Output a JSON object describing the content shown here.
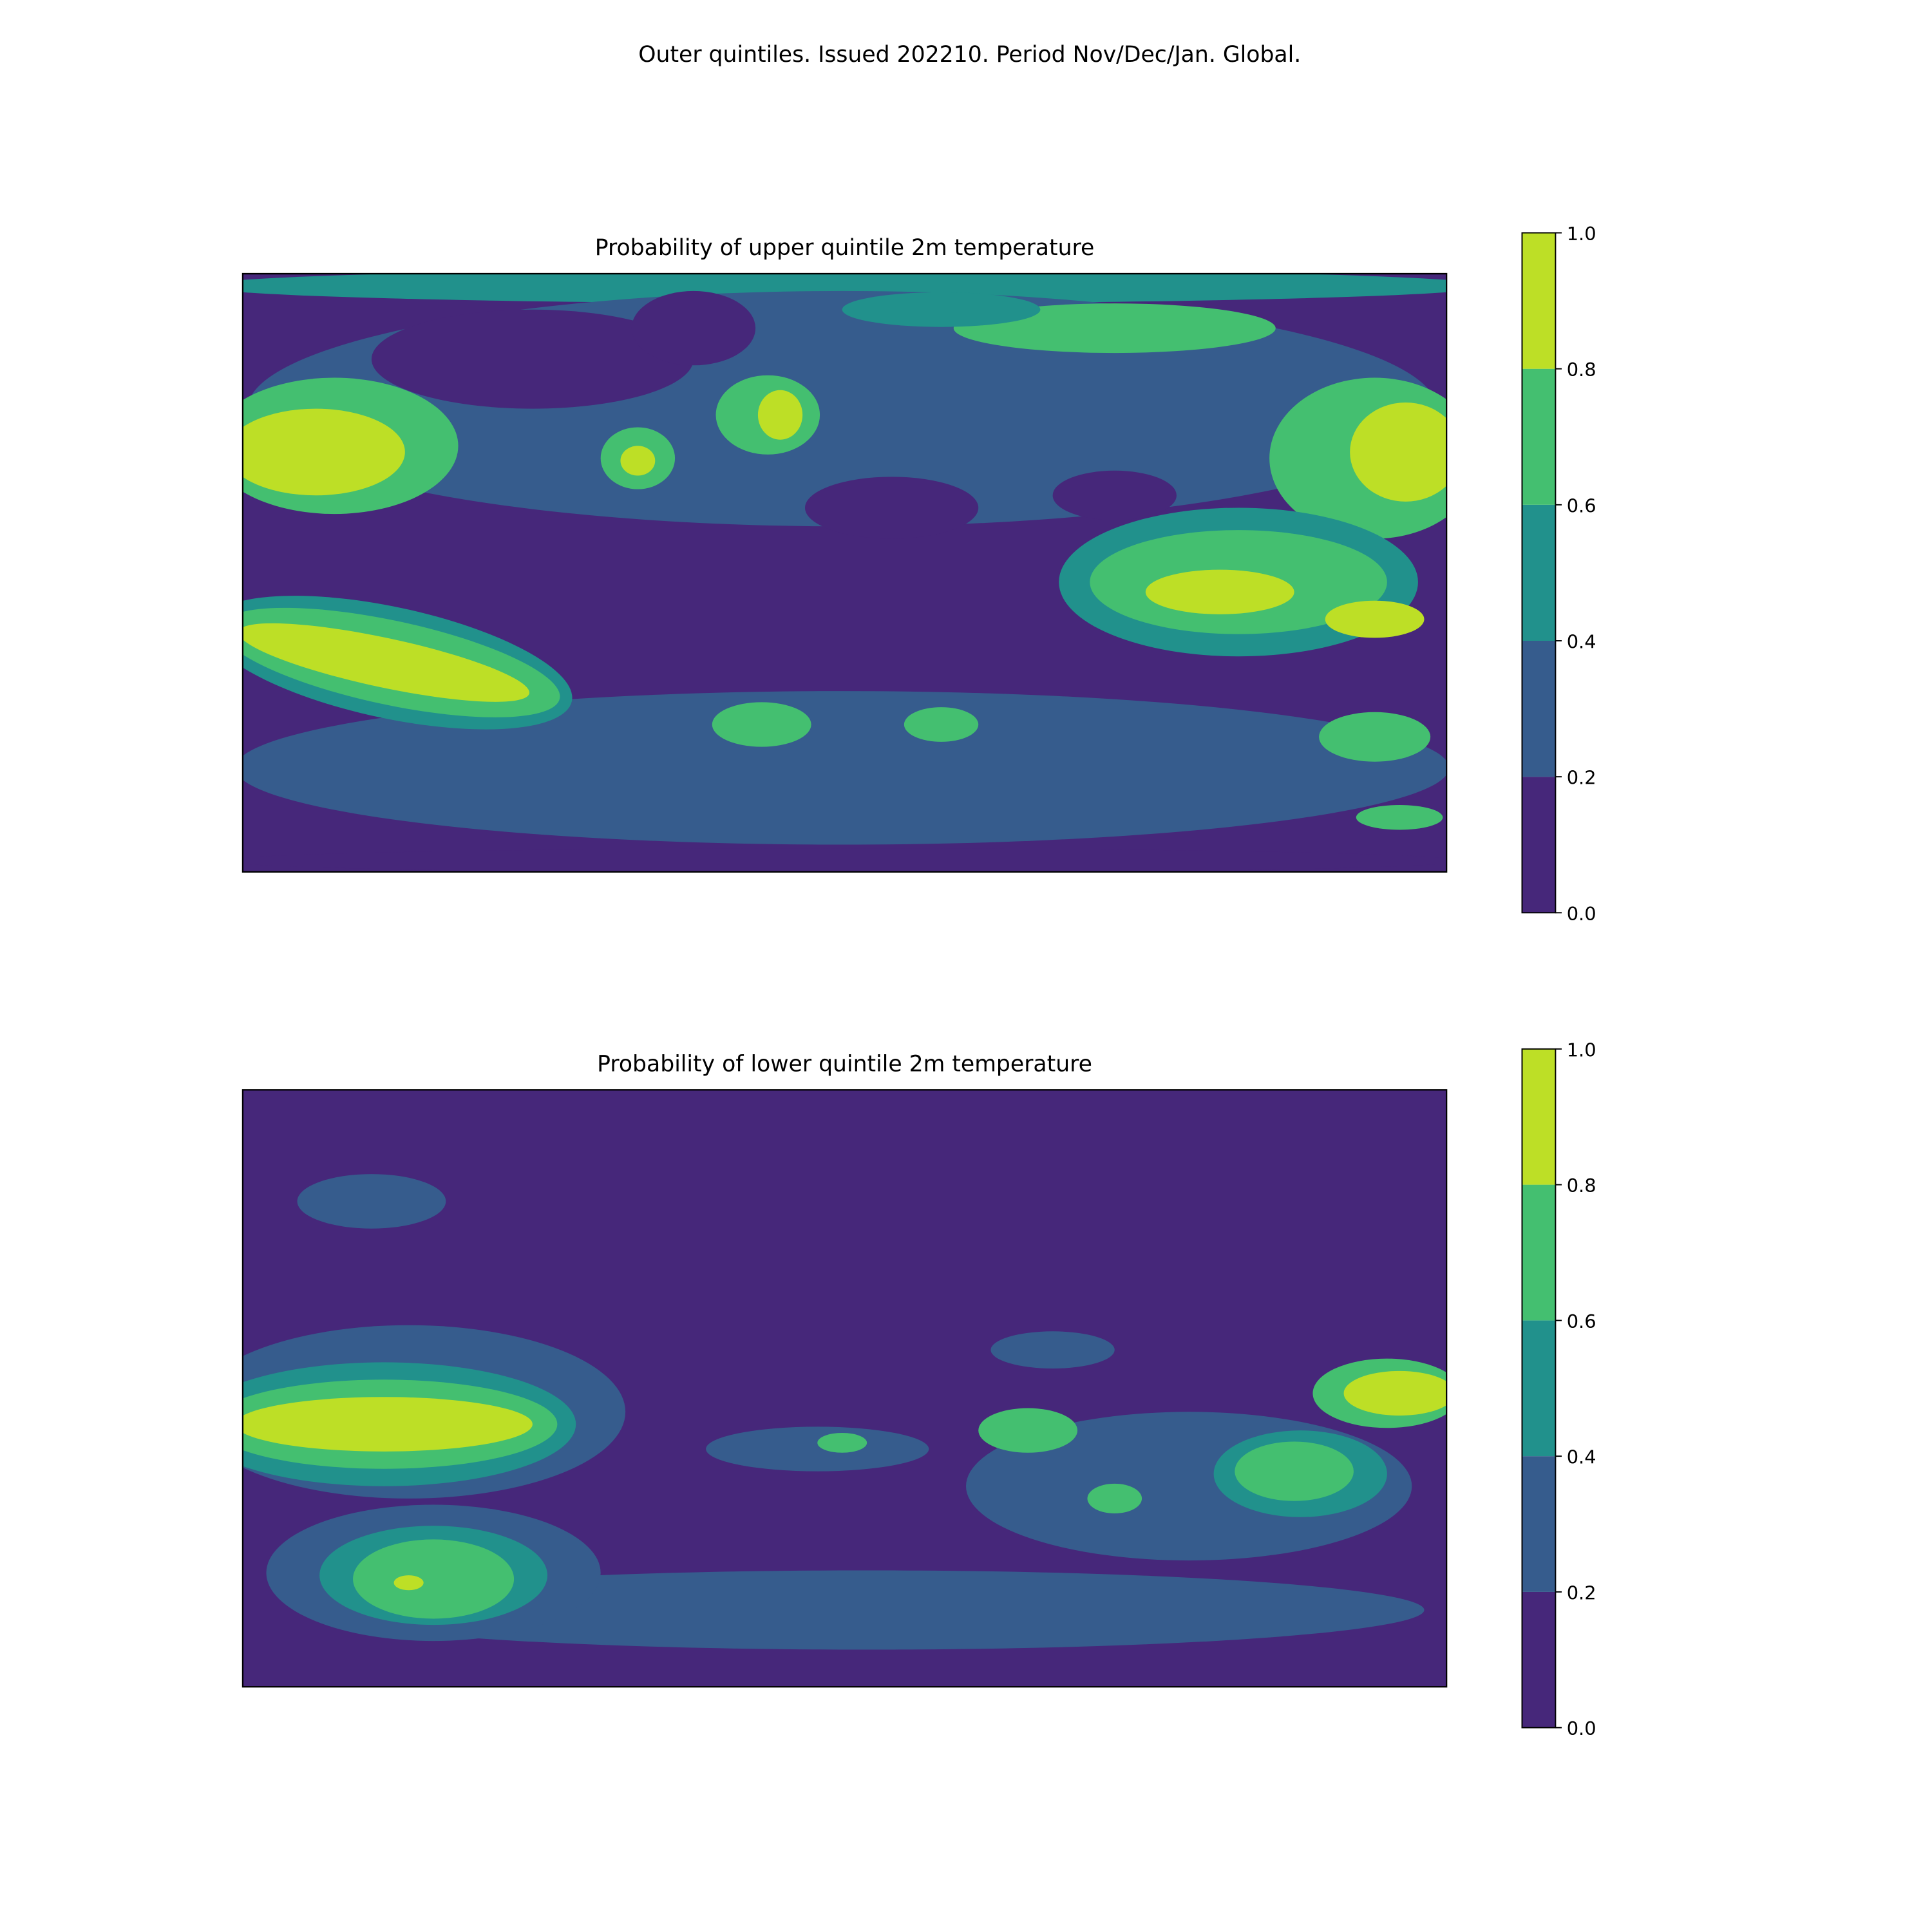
{
  "title": "Outer quintiles. Issued 202210. Period Nov/Dec/Jan. Global.",
  "chart_data": [
    {
      "type": "map",
      "title": "Probability of upper quintile 2m temperature",
      "clim": [
        0,
        1
      ],
      "colorbar_ticks": [
        {
          "value": 0,
          "label": "0.0"
        },
        0.2,
        0.4,
        0.6,
        0.8,
        {
          "value": 1,
          "label": "1.0"
        }
      ],
      "colors": [
        "#46277a",
        "#365c8d",
        "#21918c",
        "#44bf70",
        "#bddf26"
      ]
    },
    {
      "type": "map",
      "title": "Probability of lower quintile 2m temperature",
      "clim": [
        0,
        1
      ],
      "colorbar_ticks": [
        {
          "value": 0,
          "label": "0.0"
        },
        0.2,
        0.4,
        0.6,
        0.8,
        {
          "value": 1,
          "label": "1.0"
        }
      ],
      "colors": [
        "#46277a",
        "#365c8d",
        "#21918c",
        "#44bf70",
        "#bddf26"
      ]
    }
  ]
}
